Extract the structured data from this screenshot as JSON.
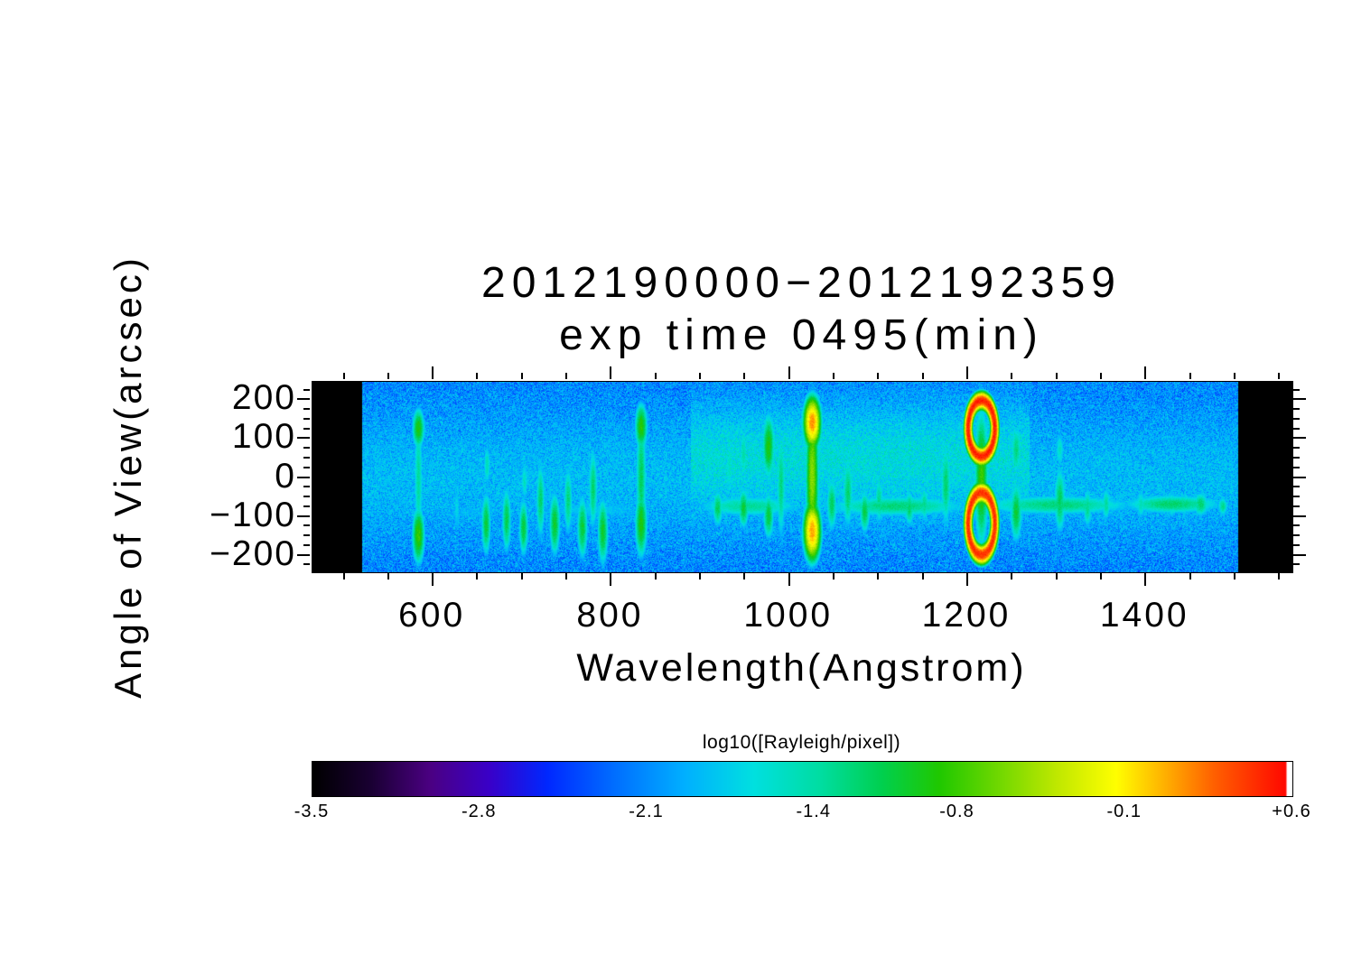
{
  "title": {
    "line1": "2012190000−2012192359",
    "line2": "exp time 0495(min)"
  },
  "chart_data": {
    "type": "heatmap",
    "title": "2012190000−2012192359 exp time 0495(min)",
    "xlabel": "Wavelength(Angstrom)",
    "ylabel": "Angle of View(arcsec)",
    "x_ticks": [
      "600",
      "800",
      "1000",
      "1200",
      "1400"
    ],
    "x_tick_values": [
      600,
      800,
      1000,
      1200,
      1400
    ],
    "x_minor_interval": 50,
    "y_ticks": [
      "200",
      "100",
      "0",
      "−100",
      "−200"
    ],
    "y_tick_values": [
      200,
      100,
      0,
      -100,
      -200
    ],
    "y_minor_interval": 25,
    "x_range": [
      465,
      1565
    ],
    "y_range": [
      -245,
      245
    ],
    "data_wavelength_range": [
      521,
      1504
    ],
    "colorbar": {
      "label": "log10([Rayleigh/pixel])",
      "tick_labels": [
        "-3.5",
        "-2.8",
        "-2.1",
        "-1.4",
        "-0.8",
        "-0.1",
        "+0.6"
      ],
      "tick_values": [
        -3.5,
        -2.8,
        -2.1,
        -1.4,
        -0.8,
        -0.1,
        0.6
      ],
      "vmin": -3.5,
      "vmax": 0.6,
      "white_end_fraction": 0.006,
      "colormap": [
        [
          0.0,
          "#000000"
        ],
        [
          0.06,
          "#1a0033"
        ],
        [
          0.12,
          "#4b0082"
        ],
        [
          0.18,
          "#3a00c8"
        ],
        [
          0.24,
          "#0028ff"
        ],
        [
          0.31,
          "#0070ff"
        ],
        [
          0.38,
          "#00b0ff"
        ],
        [
          0.45,
          "#00e0e0"
        ],
        [
          0.52,
          "#00dda0"
        ],
        [
          0.58,
          "#00d050"
        ],
        [
          0.64,
          "#20c800"
        ],
        [
          0.7,
          "#70d800"
        ],
        [
          0.76,
          "#c0e800"
        ],
        [
          0.82,
          "#ffff00"
        ],
        [
          0.87,
          "#ffb000"
        ],
        [
          0.92,
          "#ff6000"
        ],
        [
          1.0,
          "#ff0000"
        ]
      ]
    },
    "background": {
      "noise": {
        "base": -2.85,
        "spread": 1.15,
        "dark_fraction": 0.06,
        "dark_depth": 0.55,
        "texture": 0.18
      },
      "diffuse": {
        "base": -2.35,
        "center_boost": 0.45,
        "center_sigma": 200,
        "upper_patch": {
          "wl_min": 890,
          "wl_max": 1270,
          "y": 80,
          "sigma": 130,
          "boost": 0.3
        }
      }
    },
    "features": {
      "blobs_wl_y_sx_sy_v": [
        [
          584,
          -150,
          9,
          95,
          -0.8
        ],
        [
          584,
          125,
          9,
          70,
          -0.9
        ],
        [
          584,
          0,
          7,
          260,
          -1.35
        ],
        [
          627,
          -80,
          6,
          110,
          -1.7
        ],
        [
          660,
          -120,
          7,
          110,
          -1.05
        ],
        [
          661,
          30,
          6,
          80,
          -1.45
        ],
        [
          683,
          -110,
          7,
          115,
          -1.1
        ],
        [
          702,
          -130,
          7,
          100,
          -1.05
        ],
        [
          703,
          -10,
          6,
          80,
          -1.5
        ],
        [
          721,
          -60,
          7,
          140,
          -1.2
        ],
        [
          737,
          -120,
          8,
          110,
          -1.0
        ],
        [
          752,
          -60,
          7,
          130,
          -1.25
        ],
        [
          768,
          -130,
          8,
          110,
          -1.05
        ],
        [
          780,
          -30,
          7,
          150,
          -1.2
        ],
        [
          791,
          -140,
          8,
          115,
          -1.0
        ],
        [
          834,
          130,
          9,
          80,
          -0.85
        ],
        [
          834,
          -120,
          9,
          115,
          -0.9
        ],
        [
          834,
          0,
          8,
          250,
          -1.15
        ],
        [
          920,
          -80,
          8,
          65,
          -1.15
        ],
        [
          933,
          30,
          7,
          120,
          -1.5
        ],
        [
          949,
          -80,
          8,
          70,
          -1.05
        ],
        [
          949,
          60,
          7,
          100,
          -1.4
        ],
        [
          977,
          80,
          9,
          110,
          -0.9
        ],
        [
          977,
          -100,
          8,
          80,
          -1.05
        ],
        [
          991,
          -20,
          7,
          200,
          -1.25
        ],
        [
          1026,
          140,
          11,
          75,
          0.15
        ],
        [
          1026,
          -140,
          11,
          85,
          0.1
        ],
        [
          1026,
          0,
          9,
          240,
          -0.55
        ],
        [
          1048,
          -70,
          8,
          95,
          -1.15
        ],
        [
          1066,
          -40,
          8,
          130,
          -1.2
        ],
        [
          1085,
          -90,
          8,
          75,
          -1.1
        ],
        [
          1101,
          -60,
          7,
          90,
          -1.3
        ],
        [
          1135,
          -80,
          8,
          65,
          -1.2
        ],
        [
          1152,
          -70,
          7,
          65,
          -1.3
        ],
        [
          1176,
          -20,
          8,
          150,
          -1.2
        ],
        [
          1216,
          0,
          10,
          230,
          -0.8
        ],
        [
          1255,
          -90,
          9,
          105,
          -1.05
        ],
        [
          1255,
          70,
          8,
          90,
          -1.25
        ],
        [
          1304,
          -60,
          9,
          120,
          -1.15
        ],
        [
          1304,
          70,
          7,
          70,
          -1.5
        ],
        [
          1335,
          -80,
          7,
          75,
          -1.3
        ],
        [
          1356,
          -70,
          7,
          65,
          -1.35
        ],
        [
          1395,
          -70,
          8,
          55,
          -1.45
        ],
        [
          1430,
          -70,
          10,
          50,
          -1.4
        ],
        [
          1462,
          -70,
          12,
          45,
          -1.2
        ],
        [
          1487,
          -75,
          8,
          35,
          -1.3
        ],
        [
          955,
          -75,
          90,
          40,
          -1.35
        ],
        [
          1120,
          -75,
          120,
          38,
          -1.25
        ],
        [
          1300,
          -72,
          130,
          36,
          -1.25
        ],
        [
          1430,
          -70,
          80,
          34,
          -1.2
        ],
        [
          780,
          -85,
          120,
          45,
          -1.8
        ],
        [
          640,
          -90,
          90,
          45,
          -1.95
        ]
      ],
      "rings_wl_y_rx_ry_w_v": [
        [
          1216,
          125,
          15,
          72,
          0.35,
          0.5
        ],
        [
          1216,
          -120,
          15,
          80,
          0.35,
          0.45
        ]
      ]
    }
  }
}
